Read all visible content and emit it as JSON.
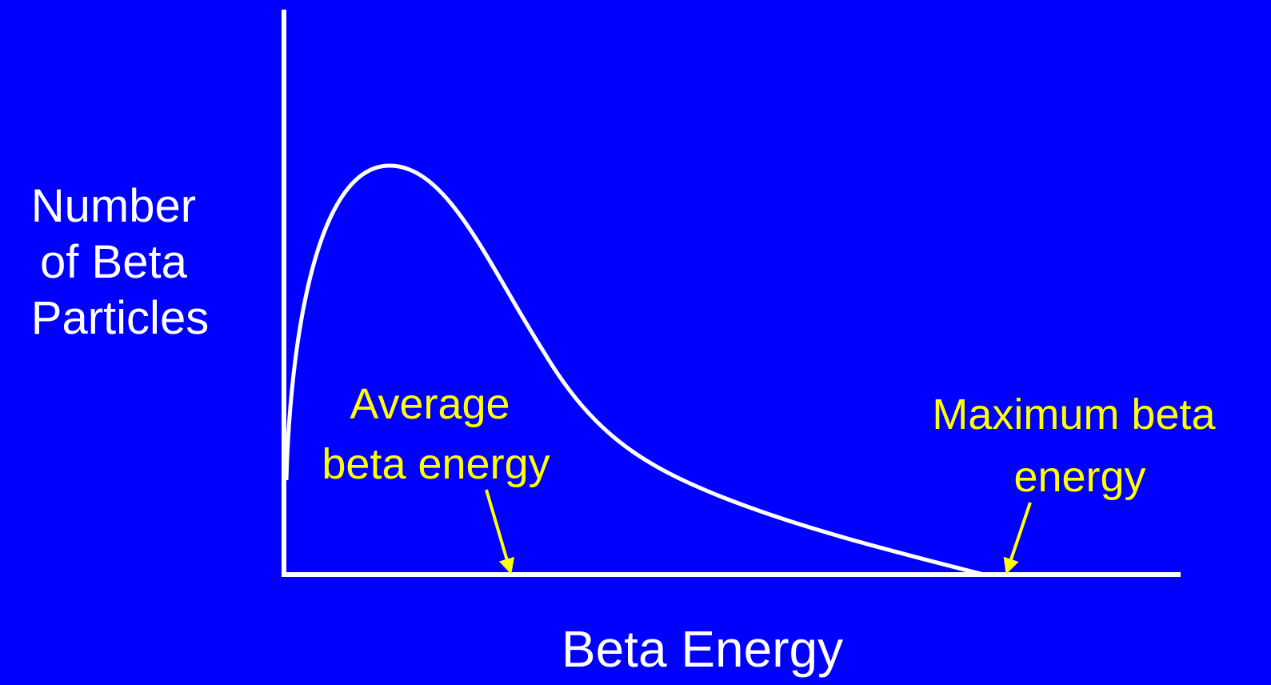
{
  "y_axis_label": {
    "lines": [
      "Number",
      "of Beta",
      "Particles"
    ]
  },
  "x_axis_label": "Beta Energy",
  "annotations": [
    {
      "lines": [
        "Average",
        "beta energy"
      ]
    },
    {
      "lines": [
        "Maximum beta",
        "energy"
      ]
    }
  ]
}
